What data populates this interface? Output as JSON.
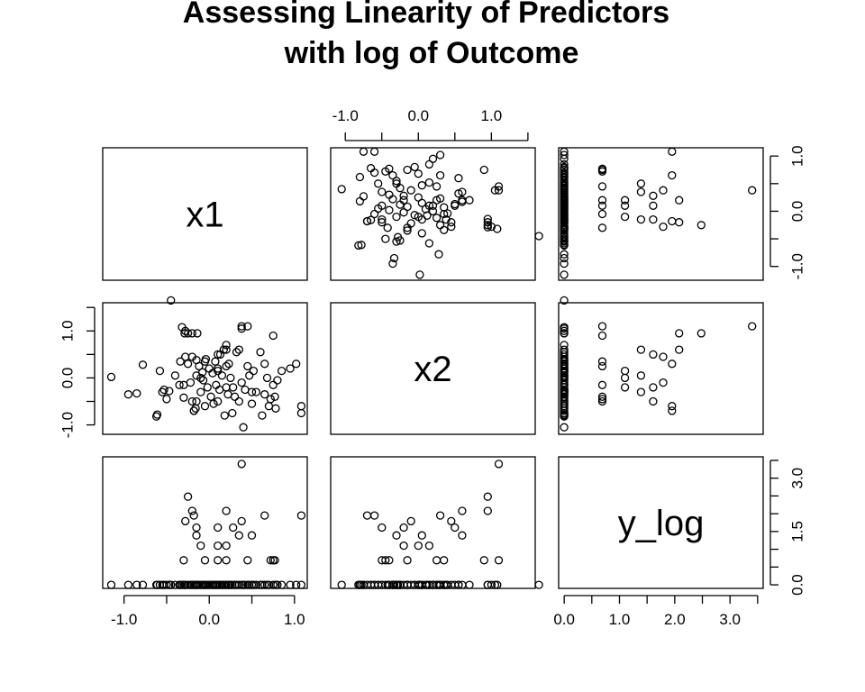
{
  "chart_data": {
    "type": "scatter",
    "title": "Assessing Linearity of Predictors\nwith log of Outcome",
    "variables": [
      "x1",
      "x2",
      "y_log"
    ],
    "layout": "pairs scatterplot matrix (3x3), variable names on diagonal",
    "axes": {
      "x1": {
        "range": [
          -1.25,
          1.15
        ],
        "ticks": [
          -1.0,
          -0.5,
          0.0,
          0.5,
          1.0
        ],
        "tick_labels": [
          "-1.0",
          "",
          "0.0",
          "",
          "1.0"
        ]
      },
      "x2": {
        "range": [
          -1.2,
          1.6
        ],
        "ticks": [
          -1.0,
          -0.5,
          0.0,
          0.5,
          1.0,
          1.5
        ],
        "tick_labels": [
          "-1.0",
          "",
          "0.0",
          "",
          "1.0",
          ""
        ]
      },
      "y_log": {
        "range": [
          -0.1,
          3.6
        ],
        "ticks": [
          0.0,
          0.5,
          1.0,
          1.5,
          2.0,
          2.5,
          3.0,
          3.5
        ],
        "tick_labels": [
          "0.0",
          "",
          "1.0",
          "",
          "2.0",
          "",
          "3.0",
          ""
        ],
        "side_tick_labels": [
          "0.0",
          "",
          "1.5",
          "",
          "3.0"
        ]
      }
    },
    "points": [
      {
        "x1": -1.15,
        "x2": 0.02,
        "y_log": 0.0
      },
      {
        "x1": -0.95,
        "x2": -0.35,
        "y_log": 0.0
      },
      {
        "x1": -0.85,
        "x2": -0.33,
        "y_log": 0.0
      },
      {
        "x1": -0.78,
        "x2": 0.28,
        "y_log": 0.0
      },
      {
        "x1": -0.62,
        "x2": -0.82,
        "y_log": 0.0
      },
      {
        "x1": -0.61,
        "x2": -0.78,
        "y_log": 0.0
      },
      {
        "x1": -0.58,
        "x2": 0.15,
        "y_log": 0.0
      },
      {
        "x1": -0.55,
        "x2": -0.3,
        "y_log": 0.0
      },
      {
        "x1": -0.53,
        "x2": -0.25,
        "y_log": 0.0
      },
      {
        "x1": -0.5,
        "x2": -0.45,
        "y_log": 0.0
      },
      {
        "x1": -0.47,
        "x2": -0.28,
        "y_log": 0.0
      },
      {
        "x1": -0.45,
        "x2": 1.65,
        "y_log": 0.0
      },
      {
        "x1": -0.4,
        "x2": 0.05,
        "y_log": 0.0
      },
      {
        "x1": -0.35,
        "x2": -0.15,
        "y_log": 0.0
      },
      {
        "x1": -0.34,
        "x2": 0.35,
        "y_log": 0.0
      },
      {
        "x1": -0.32,
        "x2": 1.08,
        "y_log": 0.0
      },
      {
        "x1": -0.3,
        "x2": -0.42,
        "y_log": 0.0
      },
      {
        "x1": -0.29,
        "x2": 0.95,
        "y_log": 0.0
      },
      {
        "x1": -0.28,
        "x2": 1.0,
        "y_log": 0.0
      },
      {
        "x1": -0.25,
        "x2": 0.3,
        "y_log": 0.0
      },
      {
        "x1": -0.22,
        "x2": -0.1,
        "y_log": 0.0
      },
      {
        "x1": -0.2,
        "x2": -0.5,
        "y_log": 0.0
      },
      {
        "x1": -0.2,
        "x2": 0.45,
        "y_log": 0.0
      },
      {
        "x1": -0.18,
        "x2": -0.7,
        "y_log": 0.0
      },
      {
        "x1": -0.16,
        "x2": -0.65,
        "y_log": 0.0
      },
      {
        "x1": -0.15,
        "x2": 0.38,
        "y_log": 0.0
      },
      {
        "x1": -0.14,
        "x2": 0.95,
        "y_log": 0.0
      },
      {
        "x1": -0.12,
        "x2": 0.25,
        "y_log": 0.0
      },
      {
        "x1": -0.1,
        "x2": -0.3,
        "y_log": 0.0
      },
      {
        "x1": -0.08,
        "x2": 0.12,
        "y_log": 0.0
      },
      {
        "x1": -0.07,
        "x2": -0.05,
        "y_log": 0.0
      },
      {
        "x1": -0.05,
        "x2": -0.6,
        "y_log": 0.0
      },
      {
        "x1": -0.04,
        "x2": 0.4,
        "y_log": 0.0
      },
      {
        "x1": -0.02,
        "x2": -0.2,
        "y_log": 0.0
      },
      {
        "x1": 0.0,
        "x2": 0.2,
        "y_log": 0.0
      },
      {
        "x1": 0.02,
        "x2": -0.4,
        "y_log": 0.0
      },
      {
        "x1": 0.04,
        "x2": 0.1,
        "y_log": 0.0
      },
      {
        "x1": 0.05,
        "x2": -0.55,
        "y_log": 0.0
      },
      {
        "x1": 0.07,
        "x2": 0.35,
        "y_log": 0.0
      },
      {
        "x1": 0.08,
        "x2": -0.15,
        "y_log": 0.0
      },
      {
        "x1": 0.1,
        "x2": 0.2,
        "y_log": 0.0
      },
      {
        "x1": 0.12,
        "x2": -0.25,
        "y_log": 0.0
      },
      {
        "x1": 0.13,
        "x2": 0.5,
        "y_log": 0.0
      },
      {
        "x1": 0.15,
        "x2": 0.05,
        "y_log": 0.0
      },
      {
        "x1": 0.17,
        "x2": 0.6,
        "y_log": 0.0
      },
      {
        "x1": 0.18,
        "x2": -0.8,
        "y_log": 0.0
      },
      {
        "x1": 0.2,
        "x2": 0.7,
        "y_log": 0.0
      },
      {
        "x1": 0.22,
        "x2": -0.35,
        "y_log": 0.0
      },
      {
        "x1": 0.23,
        "x2": 0.3,
        "y_log": 0.0
      },
      {
        "x1": 0.25,
        "x2": 0.0,
        "y_log": 0.0
      },
      {
        "x1": 0.27,
        "x2": -0.75,
        "y_log": 0.0
      },
      {
        "x1": 0.3,
        "x2": -0.4,
        "y_log": 0.0
      },
      {
        "x1": 0.32,
        "x2": 0.55,
        "y_log": 0.0
      },
      {
        "x1": 0.35,
        "x2": -0.5,
        "y_log": 0.0
      },
      {
        "x1": 0.38,
        "x2": 1.05,
        "y_log": 0.0
      },
      {
        "x1": 0.4,
        "x2": -1.05,
        "y_log": 0.0
      },
      {
        "x1": 0.42,
        "x2": -0.25,
        "y_log": 0.0
      },
      {
        "x1": 0.45,
        "x2": 0.25,
        "y_log": 0.0
      },
      {
        "x1": 0.47,
        "x2": 0.05,
        "y_log": 0.0
      },
      {
        "x1": 0.5,
        "x2": -0.55,
        "y_log": 0.0
      },
      {
        "x1": 0.52,
        "x2": 0.15,
        "y_log": 0.0
      },
      {
        "x1": 0.55,
        "x2": -0.3,
        "y_log": 0.0
      },
      {
        "x1": 0.6,
        "x2": 0.55,
        "y_log": 0.0
      },
      {
        "x1": 0.62,
        "x2": -0.8,
        "y_log": 0.0
      },
      {
        "x1": 0.65,
        "x2": -0.35,
        "y_log": 0.0
      },
      {
        "x1": 0.68,
        "x2": 0.0,
        "y_log": 0.0
      },
      {
        "x1": 0.7,
        "x2": -0.6,
        "y_log": 0.0
      },
      {
        "x1": 0.75,
        "x2": -0.15,
        "y_log": 0.0
      },
      {
        "x1": 0.78,
        "x2": -0.65,
        "y_log": 0.0
      },
      {
        "x1": 0.8,
        "x2": -0.05,
        "y_log": 0.0
      },
      {
        "x1": 0.85,
        "x2": 0.15,
        "y_log": 0.0
      },
      {
        "x1": 0.95,
        "x2": 0.2,
        "y_log": 0.0
      },
      {
        "x1": 1.02,
        "x2": 0.3,
        "y_log": 0.0
      },
      {
        "x1": 1.08,
        "x2": -0.75,
        "y_log": 0.0
      },
      {
        "x1": -0.3,
        "x2": -0.15,
        "y_log": 0.69
      },
      {
        "x1": -0.05,
        "x2": 0.35,
        "y_log": 0.69
      },
      {
        "x1": 0.1,
        "x2": -0.5,
        "y_log": 0.69
      },
      {
        "x1": 0.2,
        "x2": 0.25,
        "y_log": 0.69
      },
      {
        "x1": 0.45,
        "x2": 1.1,
        "y_log": 0.69
      },
      {
        "x1": 0.72,
        "x2": -0.45,
        "y_log": 0.69
      },
      {
        "x1": 0.75,
        "x2": 0.9,
        "y_log": 0.69
      },
      {
        "x1": 0.77,
        "x2": -0.4,
        "y_log": 0.69
      },
      {
        "x1": -0.1,
        "x2": 0.0,
        "y_log": 1.1
      },
      {
        "x1": 0.1,
        "x2": 0.15,
        "y_log": 1.1
      },
      {
        "x1": 0.2,
        "x2": -0.2,
        "y_log": 1.1
      },
      {
        "x1": 0.35,
        "x2": 0.6,
        "y_log": 1.39
      },
      {
        "x1": 0.5,
        "x2": -0.3,
        "y_log": 1.39
      },
      {
        "x1": -0.15,
        "x2": 0.05,
        "y_log": 1.39
      },
      {
        "x1": -0.15,
        "x2": -0.5,
        "y_log": 1.61
      },
      {
        "x1": 0.1,
        "x2": 0.5,
        "y_log": 1.61
      },
      {
        "x1": 0.28,
        "x2": -0.2,
        "y_log": 1.61
      },
      {
        "x1": -0.28,
        "x2": 0.45,
        "y_log": 1.79
      },
      {
        "x1": 0.38,
        "x2": -0.1,
        "y_log": 1.79
      },
      {
        "x1": -0.18,
        "x2": -0.7,
        "y_log": 1.95
      },
      {
        "x1": 0.65,
        "x2": 0.3,
        "y_log": 1.95
      },
      {
        "x1": 1.08,
        "x2": -0.6,
        "y_log": 1.95
      },
      {
        "x1": -0.2,
        "x2": 0.95,
        "y_log": 2.08
      },
      {
        "x1": 0.2,
        "x2": 0.6,
        "y_log": 2.08
      },
      {
        "x1": -0.25,
        "x2": 0.95,
        "y_log": 2.48
      },
      {
        "x1": 0.38,
        "x2": 1.1,
        "y_log": 3.4
      }
    ]
  }
}
